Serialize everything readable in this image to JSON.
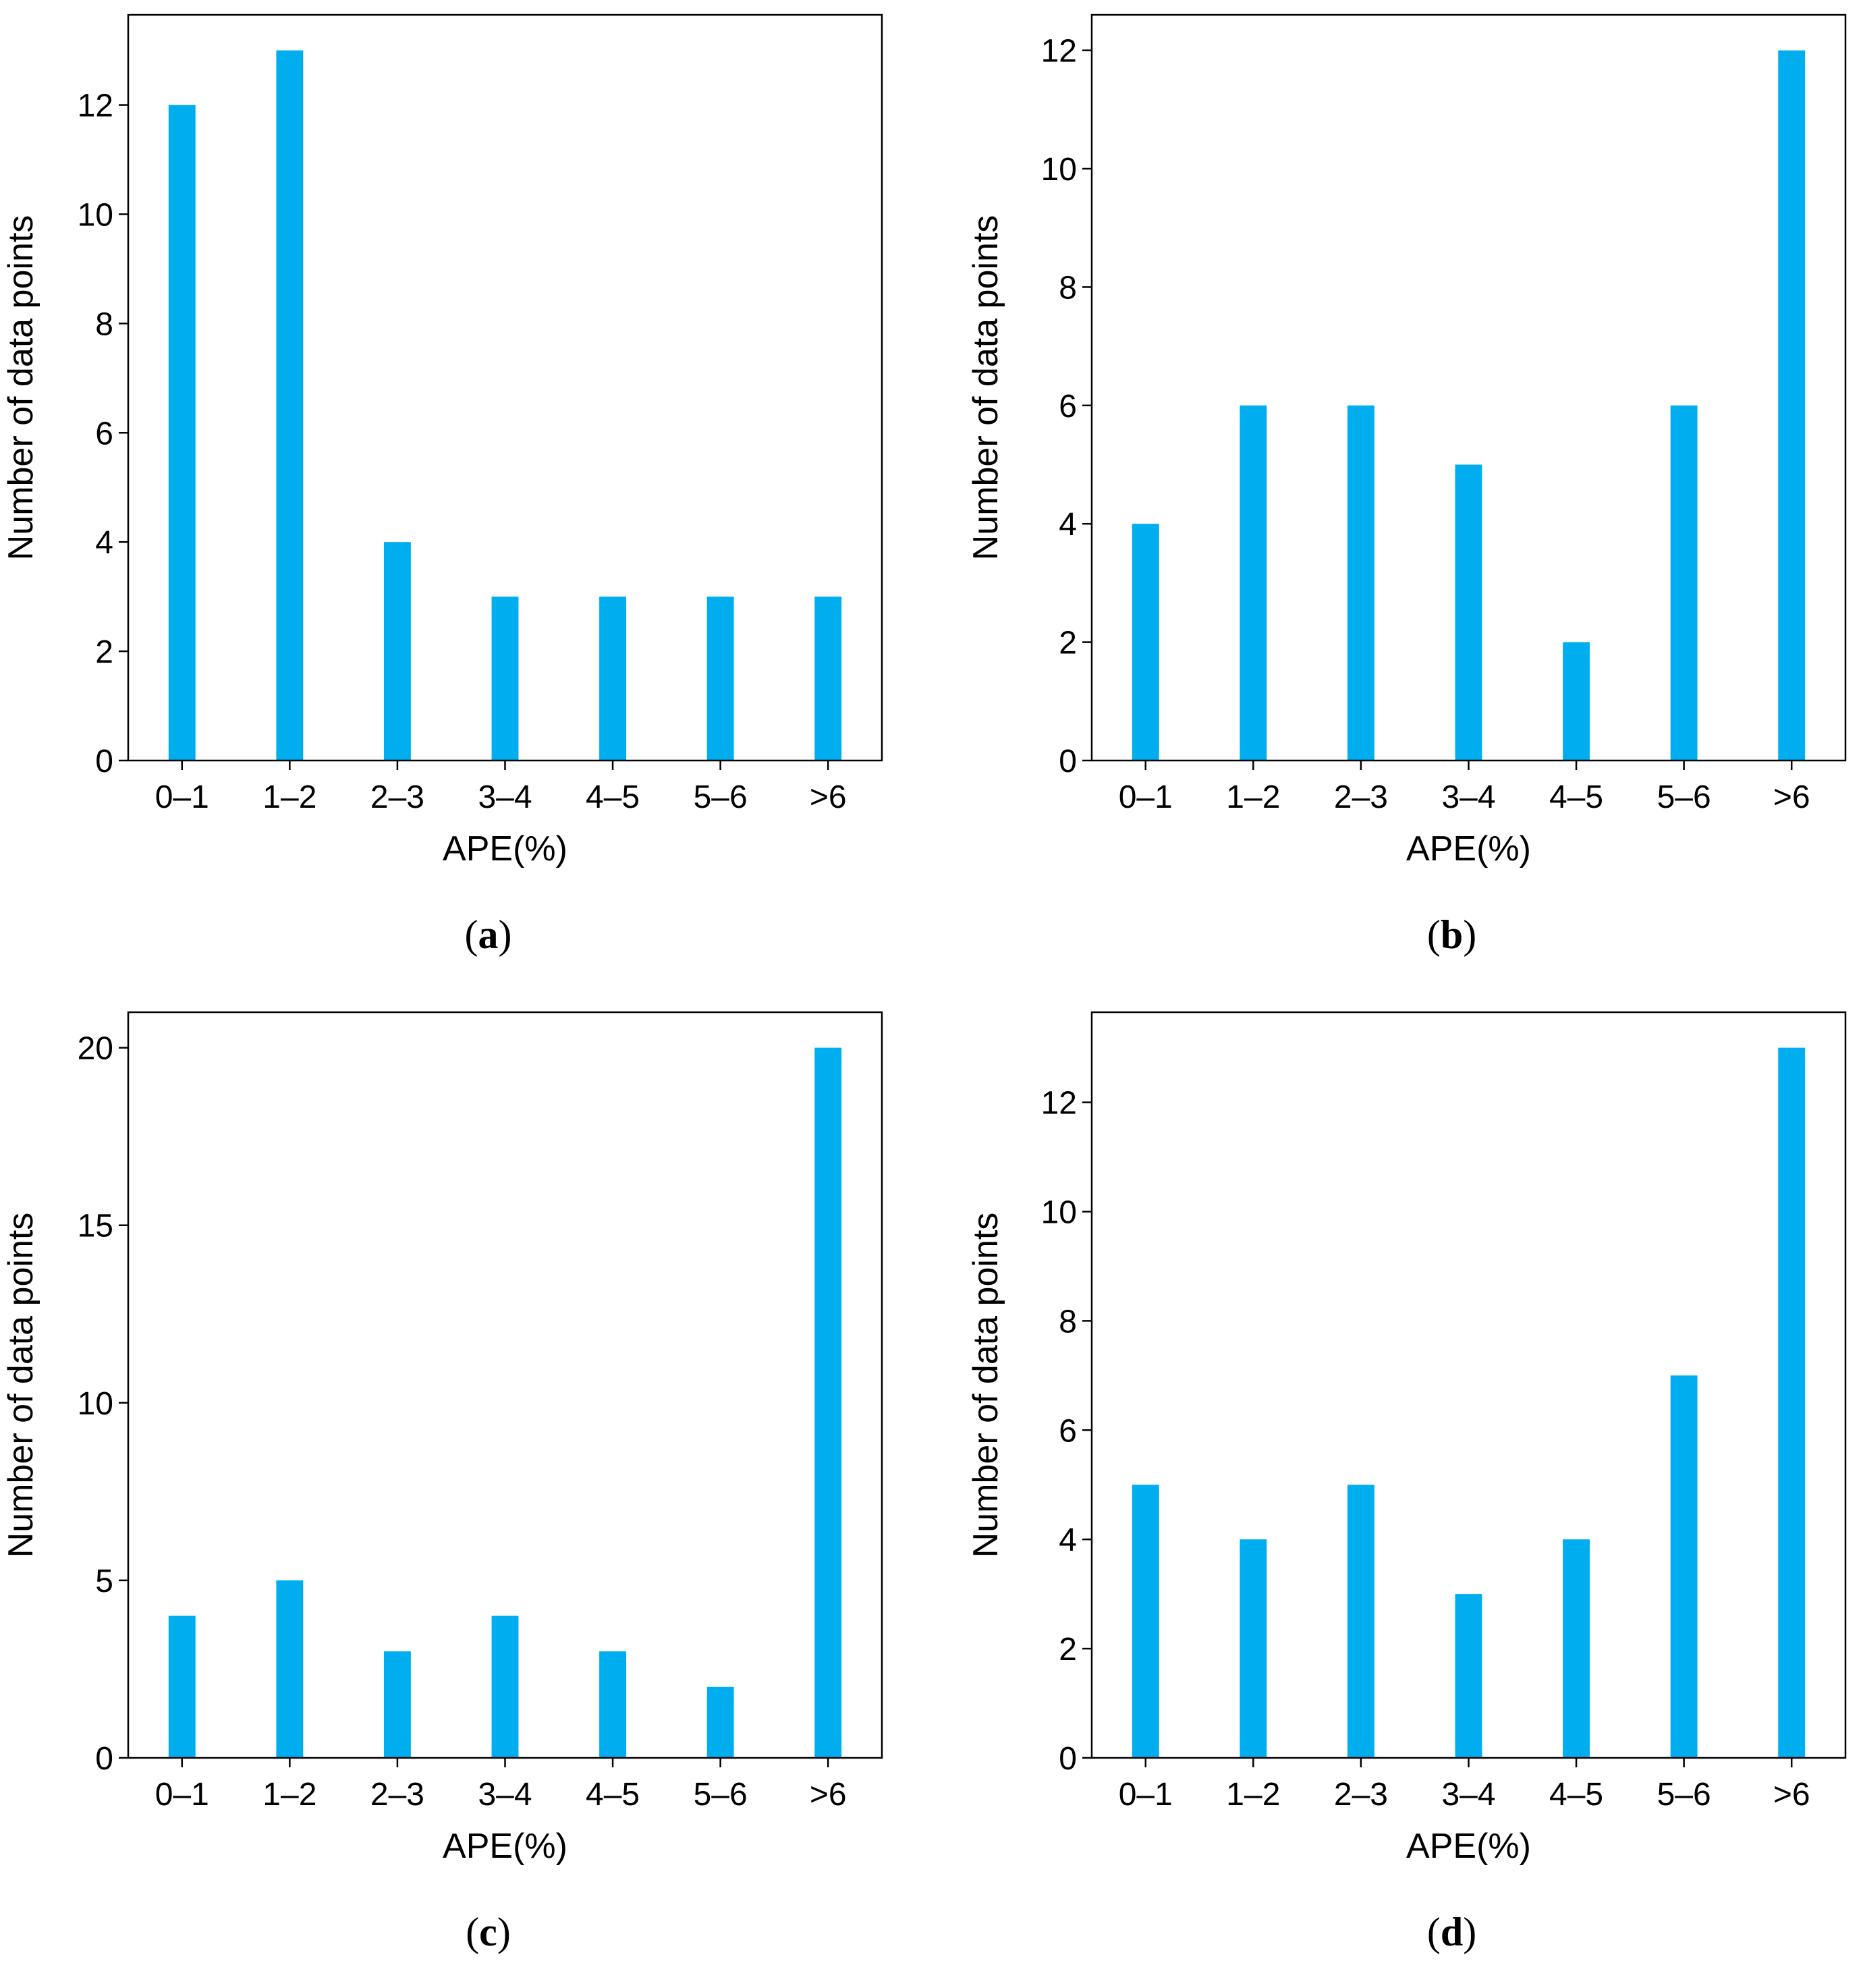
{
  "colors": {
    "bar": "#00AEEF",
    "axis": "#000000"
  },
  "chart_data": [
    {
      "type": "bar",
      "panel": "a",
      "categories": [
        "0–1",
        "1–2",
        "2–3",
        "3–4",
        "4–5",
        "5–6",
        ">6"
      ],
      "values": [
        12,
        13,
        4,
        3,
        3,
        3,
        3
      ],
      "xlabel": "APE(%)",
      "ylabel": "Number of data points",
      "ylim": [
        0,
        13.65
      ],
      "yticks": [
        0,
        2,
        4,
        6,
        8,
        10,
        12
      ]
    },
    {
      "type": "bar",
      "panel": "b",
      "categories": [
        "0–1",
        "1–2",
        "2–3",
        "3–4",
        "4–5",
        "5–6",
        ">6"
      ],
      "values": [
        4,
        6,
        6,
        5,
        2,
        6,
        12
      ],
      "xlabel": "APE(%)",
      "ylabel": "Number of data points",
      "ylim": [
        0,
        12.6
      ],
      "yticks": [
        0,
        2,
        4,
        6,
        8,
        10,
        12
      ]
    },
    {
      "type": "bar",
      "panel": "c",
      "categories": [
        "0–1",
        "1–2",
        "2–3",
        "3–4",
        "4–5",
        "5–6",
        ">6"
      ],
      "values": [
        4,
        5,
        3,
        4,
        3,
        2,
        20
      ],
      "xlabel": "APE(%)",
      "ylabel": "Number of data points",
      "ylim": [
        0,
        21
      ],
      "yticks": [
        0,
        5,
        10,
        15,
        20
      ]
    },
    {
      "type": "bar",
      "panel": "d",
      "categories": [
        "0–1",
        "1–2",
        "2–3",
        "3–4",
        "4–5",
        "5–6",
        ">6"
      ],
      "values": [
        5,
        4,
        5,
        3,
        4,
        7,
        13
      ],
      "xlabel": "APE(%)",
      "ylabel": "Number of data points",
      "ylim": [
        0,
        13.65
      ],
      "yticks": [
        0,
        2,
        4,
        6,
        8,
        10,
        12
      ]
    }
  ]
}
